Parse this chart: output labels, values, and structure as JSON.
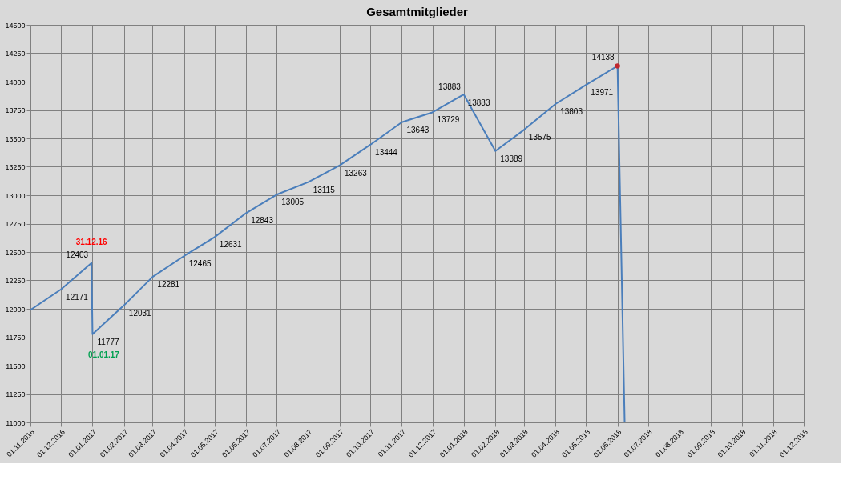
{
  "chart_data": {
    "type": "line",
    "title": "Gesamtmitglieder",
    "x": [
      "2016-11-01",
      "2016-12-01",
      "2016-12-31",
      "2017-01-01",
      "2017-02-01",
      "2017-03-01",
      "2017-04-01",
      "2017-05-01",
      "2017-06-01",
      "2017-07-01",
      "2017-08-01",
      "2017-09-01",
      "2017-10-01",
      "2017-11-01",
      "2017-12-01",
      "2017-12-31",
      "2018-01-01",
      "2018-02-01",
      "2018-03-01",
      "2018-04-01",
      "2018-05-01",
      "2018-06-01",
      "2018-06-08"
    ],
    "series": [
      {
        "color": "#4a7ebb",
        "values": [
          11990,
          12171,
          12403,
          11777,
          12031,
          12281,
          12465,
          12631,
          12843,
          13005,
          13115,
          13263,
          13444,
          13643,
          13729,
          13883,
          13883,
          13389,
          13575,
          13803,
          13971,
          14138,
          11000
        ],
        "value_labels": [
          null,
          "12171",
          "12403",
          "11777",
          "12031",
          "12281",
          "12465",
          "12631",
          "12843",
          "13005",
          "13115",
          "13263",
          "13444",
          "13643",
          "13729",
          "13883",
          "13883",
          "13389",
          "13575",
          "13803",
          "13971",
          "14138",
          null
        ]
      },
      {
        "type": "scatter",
        "color": "#c0272d",
        "x": [
          "2018-06-01"
        ],
        "values": [
          14138
        ]
      }
    ],
    "annotations": [
      {
        "text": "31.12.16",
        "x": "2016-12-31",
        "y": 12403
      },
      {
        "text": "01.01.17",
        "x": "2017-01-01",
        "y": 11777
      }
    ],
    "xlim": [
      "2016-11-01",
      "2018-12-01"
    ],
    "xticks": [
      {
        "value": "2016-11-01",
        "label": "01.11.2016"
      },
      {
        "value": "2016-12-01",
        "label": "01.12.2016"
      },
      {
        "value": "2017-01-01",
        "label": "01.01.2017"
      },
      {
        "value": "2017-02-01",
        "label": "01.02.2017"
      },
      {
        "value": "2017-03-01",
        "label": "01.03.2017"
      },
      {
        "value": "2017-04-01",
        "label": "01.04.2017"
      },
      {
        "value": "2017-05-01",
        "label": "01.05.2017"
      },
      {
        "value": "2017-06-01",
        "label": "01.06.2017"
      },
      {
        "value": "2017-07-01",
        "label": "01.07.2017"
      },
      {
        "value": "2017-08-01",
        "label": "01.08.2017"
      },
      {
        "value": "2017-09-01",
        "label": "01.09.2017"
      },
      {
        "value": "2017-10-01",
        "label": "01.10.2017"
      },
      {
        "value": "2017-11-01",
        "label": "01.11.2017"
      },
      {
        "value": "2017-12-01",
        "label": "01.12.2017"
      },
      {
        "value": "2018-01-01",
        "label": "01.01.2018"
      },
      {
        "value": "2018-02-01",
        "label": "01.02.2018"
      },
      {
        "value": "2018-03-01",
        "label": "01.03.2018"
      },
      {
        "value": "2018-04-01",
        "label": "01.04.2018"
      },
      {
        "value": "2018-05-01",
        "label": "01.05.2018"
      },
      {
        "value": "2018-06-01",
        "label": "01.06.2018"
      },
      {
        "value": "2018-07-01",
        "label": "01.07.2018"
      },
      {
        "value": "2018-08-01",
        "label": "01.08.2018"
      },
      {
        "value": "2018-09-01",
        "label": "01.09.2018"
      },
      {
        "value": "2018-10-01",
        "label": "01.10.2018"
      },
      {
        "value": "2018-11-01",
        "label": "01.11.2018"
      },
      {
        "value": "2018-12-01",
        "label": "01.12.2018"
      }
    ],
    "ylim": [
      11000,
      14500
    ],
    "yticks": [
      11000,
      11250,
      11500,
      11750,
      12000,
      12250,
      12500,
      12750,
      13000,
      13250,
      13500,
      13750,
      14000,
      14250,
      14500
    ],
    "grid": true,
    "marker": "none",
    "line_style": "solid"
  }
}
